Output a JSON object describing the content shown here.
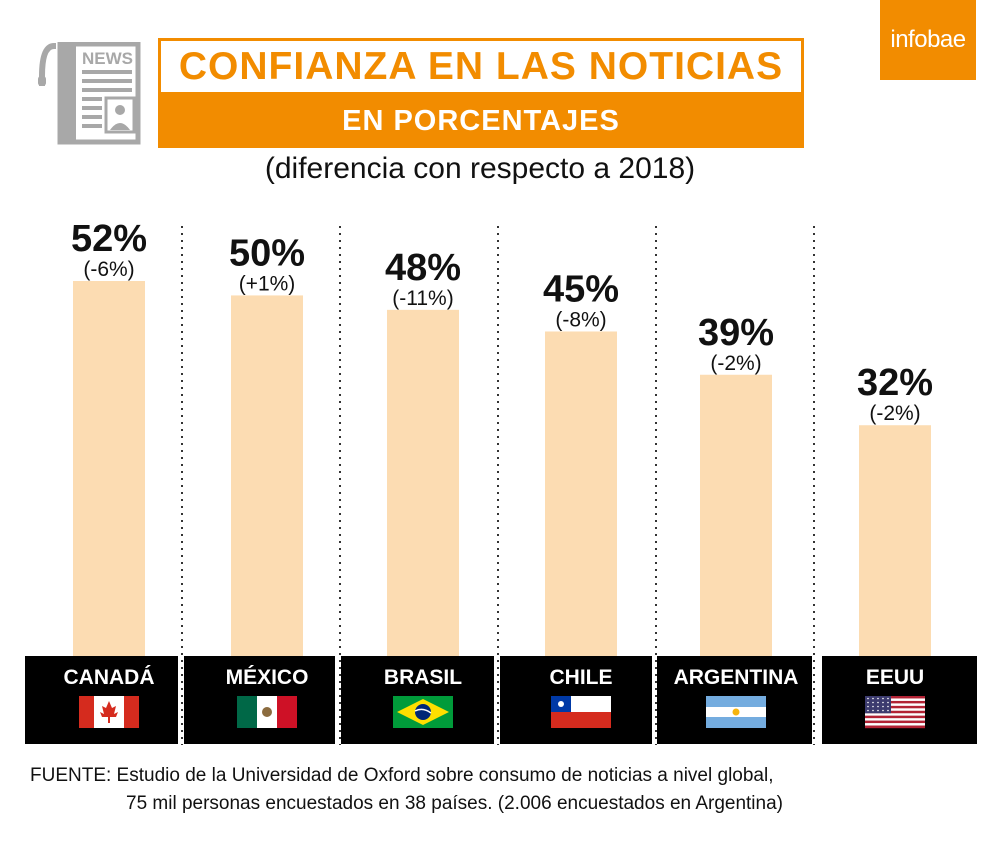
{
  "header": {
    "title": "CONFIANZA EN LAS NOTICIAS",
    "subtitle": "EN PORCENTAJES",
    "note": "(diferencia con respecto a 2018)",
    "brand": "infobae",
    "icon_label": "NEWS"
  },
  "colors": {
    "accent": "#f28c00",
    "bar": "#fcdcb2",
    "label_bg": "#000000"
  },
  "chart_data": {
    "type": "bar",
    "categories": [
      "CANADÁ",
      "MÉXICO",
      "BRASIL",
      "CHILE",
      "ARGENTINA",
      "EEUU"
    ],
    "values": [
      52,
      50,
      48,
      45,
      39,
      32
    ],
    "value_labels": [
      "52%",
      "50%",
      "48%",
      "45%",
      "39%",
      "32%"
    ],
    "changes": [
      "(-6%)",
      "(+1%)",
      "(-11%)",
      "(-8%)",
      "(-2%)",
      "(-2%)"
    ],
    "flags": [
      "canada-flag",
      "mexico-flag",
      "brazil-flag",
      "chile-flag",
      "argentina-flag",
      "usa-flag"
    ],
    "unit": "%",
    "ylim": [
      0,
      60
    ],
    "grid": false,
    "legend": "none"
  },
  "source": {
    "line1": "FUENTE: Estudio de la Universidad de Oxford sobre consumo de noticias a nivel global,",
    "line2": "75 mil personas encuestados en 38 países. (2.006 encuestados en Argentina)"
  }
}
